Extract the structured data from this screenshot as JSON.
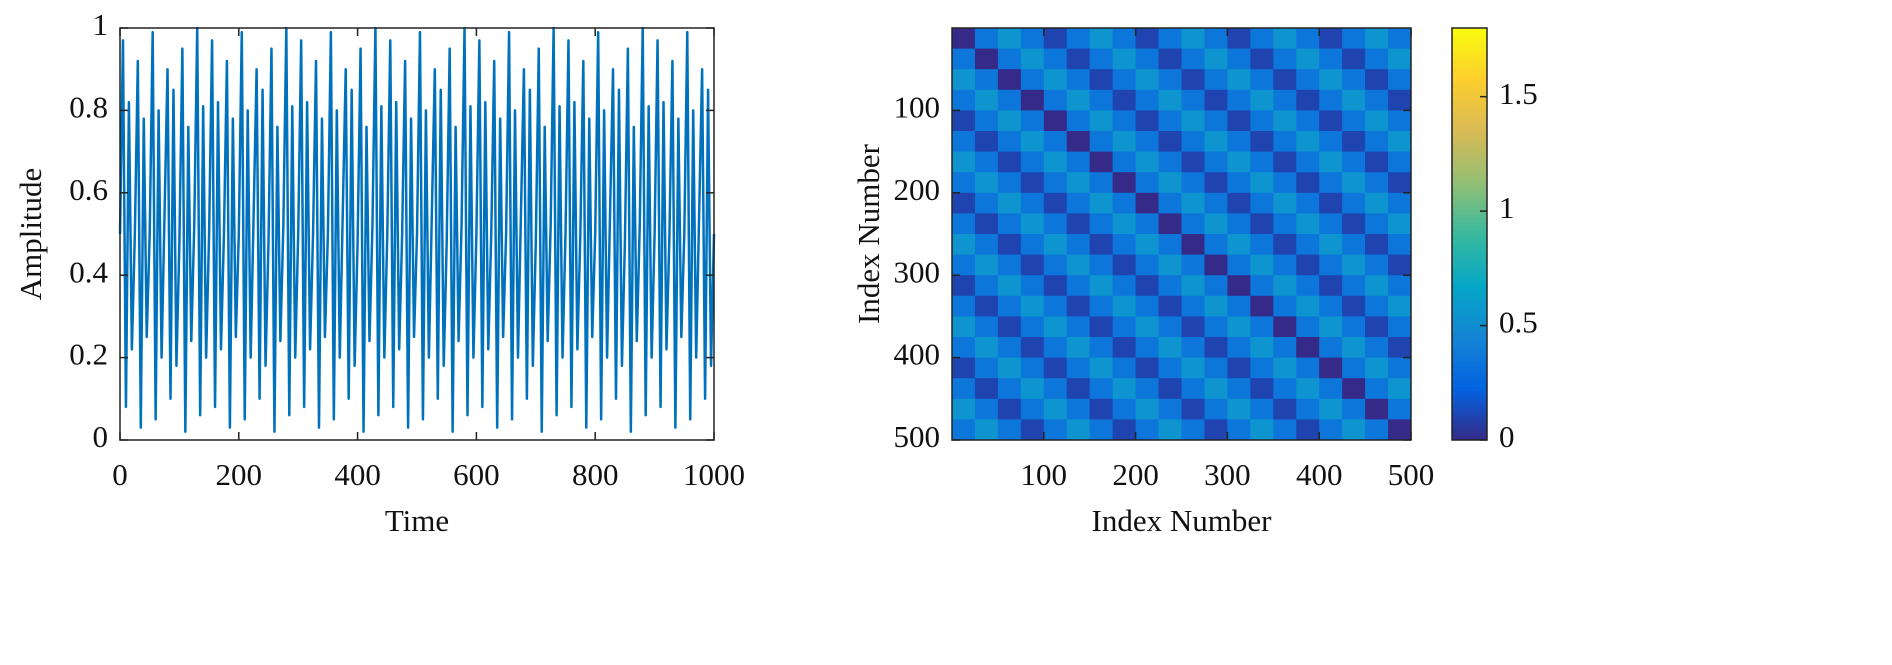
{
  "chart_data": [
    {
      "type": "line",
      "xlabel": "Time",
      "ylabel": "Amplitude",
      "color": "#0072bd",
      "xlim": [
        0,
        1000
      ],
      "xticks": [
        0,
        200,
        400,
        600,
        800,
        1000
      ],
      "ylim": [
        0,
        1
      ],
      "yticks": [
        0,
        0.2,
        0.4,
        0.6,
        0.8,
        1
      ],
      "x": [
        0,
        5,
        10,
        15,
        20,
        25,
        30,
        35,
        40,
        45,
        50,
        55,
        60,
        65,
        70,
        75,
        80,
        85,
        90,
        95,
        100,
        105,
        110,
        115,
        120,
        125,
        130,
        135,
        140,
        145,
        150,
        155,
        160,
        165,
        170,
        175,
        180,
        185,
        190,
        195,
        200,
        205,
        210,
        215,
        220,
        225,
        230,
        235,
        240,
        245,
        250,
        255,
        260,
        265,
        270,
        275,
        280,
        285,
        290,
        295,
        300,
        305,
        310,
        315,
        320,
        325,
        330,
        335,
        340,
        345,
        350,
        355,
        360,
        365,
        370,
        375,
        380,
        385,
        390,
        395,
        400,
        405,
        410,
        415,
        420,
        425,
        430,
        435,
        440,
        445,
        450,
        455,
        460,
        465,
        470,
        475,
        480,
        485,
        490,
        495,
        500,
        505,
        510,
        515,
        520,
        525,
        530,
        535,
        540,
        545,
        550,
        555,
        560,
        565,
        570,
        575,
        580,
        585,
        590,
        595,
        600,
        605,
        610,
        615,
        620,
        625,
        630,
        635,
        640,
        645,
        650,
        655,
        660,
        665,
        670,
        675,
        680,
        685,
        690,
        695,
        700,
        705,
        710,
        715,
        720,
        725,
        730,
        735,
        740,
        745,
        750,
        755,
        760,
        765,
        770,
        775,
        780,
        785,
        790,
        795,
        800,
        805,
        810,
        815,
        820,
        825,
        830,
        835,
        840,
        845,
        850,
        855,
        860,
        865,
        870,
        875,
        880,
        885,
        890,
        895,
        900,
        905,
        910,
        915,
        920,
        925,
        930,
        935,
        940,
        945,
        950,
        955,
        960,
        965,
        970,
        975,
        980,
        985,
        990,
        995,
        1000
      ],
      "values": [
        0.5,
        0.97,
        0.08,
        0.82,
        0.22,
        0.5,
        0.92,
        0.03,
        0.78,
        0.25,
        0.5,
        0.99,
        0.05,
        0.8,
        0.2,
        0.55,
        0.9,
        0.1,
        0.85,
        0.18,
        0.48,
        0.95,
        0.02,
        0.76,
        0.24,
        0.52,
        1.0,
        0.06,
        0.81,
        0.2,
        0.5,
        0.97,
        0.08,
        0.82,
        0.22,
        0.5,
        0.92,
        0.03,
        0.78,
        0.25,
        0.5,
        0.99,
        0.05,
        0.8,
        0.2,
        0.55,
        0.9,
        0.1,
        0.85,
        0.18,
        0.48,
        0.95,
        0.02,
        0.76,
        0.24,
        0.52,
        1.0,
        0.06,
        0.81,
        0.2,
        0.5,
        0.97,
        0.08,
        0.82,
        0.22,
        0.5,
        0.92,
        0.03,
        0.78,
        0.25,
        0.5,
        0.99,
        0.05,
        0.8,
        0.2,
        0.55,
        0.9,
        0.1,
        0.85,
        0.18,
        0.48,
        0.95,
        0.02,
        0.76,
        0.24,
        0.52,
        1.0,
        0.06,
        0.81,
        0.2,
        0.5,
        0.97,
        0.08,
        0.82,
        0.22,
        0.5,
        0.92,
        0.03,
        0.78,
        0.25,
        0.5,
        0.99,
        0.05,
        0.8,
        0.2,
        0.55,
        0.9,
        0.1,
        0.85,
        0.18,
        0.48,
        0.95,
        0.02,
        0.76,
        0.24,
        0.52,
        1.0,
        0.06,
        0.81,
        0.2,
        0.5,
        0.97,
        0.08,
        0.82,
        0.22,
        0.5,
        0.92,
        0.03,
        0.78,
        0.25,
        0.5,
        0.99,
        0.05,
        0.8,
        0.2,
        0.55,
        0.9,
        0.1,
        0.85,
        0.18,
        0.48,
        0.95,
        0.02,
        0.76,
        0.24,
        0.52,
        1.0,
        0.06,
        0.81,
        0.2,
        0.5,
        0.97,
        0.08,
        0.82,
        0.22,
        0.5,
        0.92,
        0.03,
        0.78,
        0.25,
        0.5,
        0.99,
        0.05,
        0.8,
        0.2,
        0.55,
        0.9,
        0.1,
        0.85,
        0.18,
        0.48,
        0.95,
        0.02,
        0.76,
        0.24,
        0.52,
        1.0,
        0.06,
        0.81,
        0.2,
        0.5,
        0.97,
        0.08,
        0.82,
        0.22,
        0.5,
        0.92,
        0.03,
        0.78,
        0.25,
        0.5,
        0.99,
        0.05,
        0.8,
        0.2,
        0.55,
        0.9,
        0.1,
        0.85,
        0.18,
        0.5
      ]
    },
    {
      "type": "heatmap",
      "xlabel": "Index Number",
      "ylabel": "Index Number",
      "colormap": "parula",
      "xlim": [
        0,
        500
      ],
      "xticks": [
        100,
        200,
        300,
        400,
        500
      ],
      "ylim": [
        500,
        0
      ],
      "yticks": [
        100,
        200,
        300,
        400,
        500
      ],
      "clim": [
        0,
        1.8
      ],
      "cticks": [
        0,
        0.5,
        1,
        1.5
      ],
      "x": [
        12.5,
        37.5,
        62.5,
        87.5,
        112.5,
        137.5,
        162.5,
        187.5,
        212.5,
        237.5,
        262.5,
        287.5,
        312.5,
        337.5,
        362.5,
        387.5,
        412.5,
        437.5,
        462.5,
        487.5
      ],
      "y": [
        12.5,
        37.5,
        62.5,
        87.5,
        112.5,
        137.5,
        162.5,
        187.5,
        212.5,
        237.5,
        262.5,
        287.5,
        312.5,
        337.5,
        362.5,
        387.5,
        412.5,
        437.5,
        462.5,
        487.5
      ],
      "values": [
        [
          0,
          0.35,
          0.55,
          0.35,
          0.1,
          0.35,
          0.55,
          0.35,
          0.1,
          0.35,
          0.55,
          0.35,
          0.1,
          0.35,
          0.55,
          0.35,
          0.1,
          0.35,
          0.55,
          0.35
        ],
        [
          0.35,
          0,
          0.35,
          0.55,
          0.35,
          0.1,
          0.35,
          0.55,
          0.35,
          0.1,
          0.35,
          0.55,
          0.35,
          0.1,
          0.35,
          0.55,
          0.35,
          0.1,
          0.35,
          0.55
        ],
        [
          0.55,
          0.35,
          0,
          0.35,
          0.55,
          0.35,
          0.1,
          0.35,
          0.55,
          0.35,
          0.1,
          0.35,
          0.55,
          0.35,
          0.1,
          0.35,
          0.55,
          0.35,
          0.1,
          0.35
        ],
        [
          0.35,
          0.55,
          0.35,
          0,
          0.35,
          0.55,
          0.35,
          0.1,
          0.35,
          0.55,
          0.35,
          0.1,
          0.35,
          0.55,
          0.35,
          0.1,
          0.35,
          0.55,
          0.35,
          0.1
        ],
        [
          0.1,
          0.35,
          0.55,
          0.35,
          0,
          0.35,
          0.55,
          0.35,
          0.1,
          0.35,
          0.55,
          0.35,
          0.1,
          0.35,
          0.55,
          0.35,
          0.1,
          0.35,
          0.55,
          0.35
        ],
        [
          0.35,
          0.1,
          0.35,
          0.55,
          0.35,
          0,
          0.35,
          0.55,
          0.35,
          0.1,
          0.35,
          0.55,
          0.35,
          0.1,
          0.35,
          0.55,
          0.35,
          0.1,
          0.35,
          0.55
        ],
        [
          0.55,
          0.35,
          0.1,
          0.35,
          0.55,
          0.35,
          0,
          0.35,
          0.55,
          0.35,
          0.1,
          0.35,
          0.55,
          0.35,
          0.1,
          0.35,
          0.55,
          0.35,
          0.1,
          0.35
        ],
        [
          0.35,
          0.55,
          0.35,
          0.1,
          0.35,
          0.55,
          0.35,
          0,
          0.35,
          0.55,
          0.35,
          0.1,
          0.35,
          0.55,
          0.35,
          0.1,
          0.35,
          0.55,
          0.35,
          0.1
        ],
        [
          0.1,
          0.35,
          0.55,
          0.35,
          0.1,
          0.35,
          0.55,
          0.35,
          0,
          0.35,
          0.55,
          0.35,
          0.1,
          0.35,
          0.55,
          0.35,
          0.1,
          0.35,
          0.55,
          0.35
        ],
        [
          0.35,
          0.1,
          0.35,
          0.55,
          0.35,
          0.1,
          0.35,
          0.55,
          0.35,
          0,
          0.35,
          0.55,
          0.35,
          0.1,
          0.35,
          0.55,
          0.35,
          0.1,
          0.35,
          0.55
        ],
        [
          0.55,
          0.35,
          0.1,
          0.35,
          0.55,
          0.35,
          0.1,
          0.35,
          0.55,
          0.35,
          0,
          0.35,
          0.55,
          0.35,
          0.1,
          0.35,
          0.55,
          0.35,
          0.1,
          0.35
        ],
        [
          0.35,
          0.55,
          0.35,
          0.1,
          0.35,
          0.55,
          0.35,
          0.1,
          0.35,
          0.55,
          0.35,
          0,
          0.35,
          0.55,
          0.35,
          0.1,
          0.35,
          0.55,
          0.35,
          0.1
        ],
        [
          0.1,
          0.35,
          0.55,
          0.35,
          0.1,
          0.35,
          0.55,
          0.35,
          0.1,
          0.35,
          0.55,
          0.35,
          0,
          0.35,
          0.55,
          0.35,
          0.1,
          0.35,
          0.55,
          0.35
        ],
        [
          0.35,
          0.1,
          0.35,
          0.55,
          0.35,
          0.1,
          0.35,
          0.55,
          0.35,
          0.1,
          0.35,
          0.55,
          0.35,
          0,
          0.35,
          0.55,
          0.35,
          0.1,
          0.35,
          0.55
        ],
        [
          0.55,
          0.35,
          0.1,
          0.35,
          0.55,
          0.35,
          0.1,
          0.35,
          0.55,
          0.35,
          0.1,
          0.35,
          0.55,
          0.35,
          0,
          0.35,
          0.55,
          0.35,
          0.1,
          0.35
        ],
        [
          0.35,
          0.55,
          0.35,
          0.1,
          0.35,
          0.55,
          0.35,
          0.1,
          0.35,
          0.55,
          0.35,
          0.1,
          0.35,
          0.55,
          0.35,
          0,
          0.35,
          0.55,
          0.35,
          0.1
        ],
        [
          0.1,
          0.35,
          0.55,
          0.35,
          0.1,
          0.35,
          0.55,
          0.35,
          0.1,
          0.35,
          0.55,
          0.35,
          0.1,
          0.35,
          0.55,
          0.35,
          0,
          0.35,
          0.55,
          0.35
        ],
        [
          0.35,
          0.1,
          0.35,
          0.55,
          0.35,
          0.1,
          0.35,
          0.55,
          0.35,
          0.1,
          0.35,
          0.55,
          0.35,
          0.1,
          0.35,
          0.55,
          0.35,
          0,
          0.35,
          0.55
        ],
        [
          0.55,
          0.35,
          0.1,
          0.35,
          0.55,
          0.35,
          0.1,
          0.35,
          0.55,
          0.35,
          0.1,
          0.35,
          0.55,
          0.35,
          0.1,
          0.35,
          0.55,
          0.35,
          0,
          0.35
        ],
        [
          0.35,
          0.55,
          0.35,
          0.1,
          0.35,
          0.55,
          0.35,
          0.1,
          0.35,
          0.55,
          0.35,
          0.1,
          0.35,
          0.55,
          0.35,
          0.1,
          0.35,
          0.55,
          0.35,
          0
        ]
      ]
    }
  ]
}
